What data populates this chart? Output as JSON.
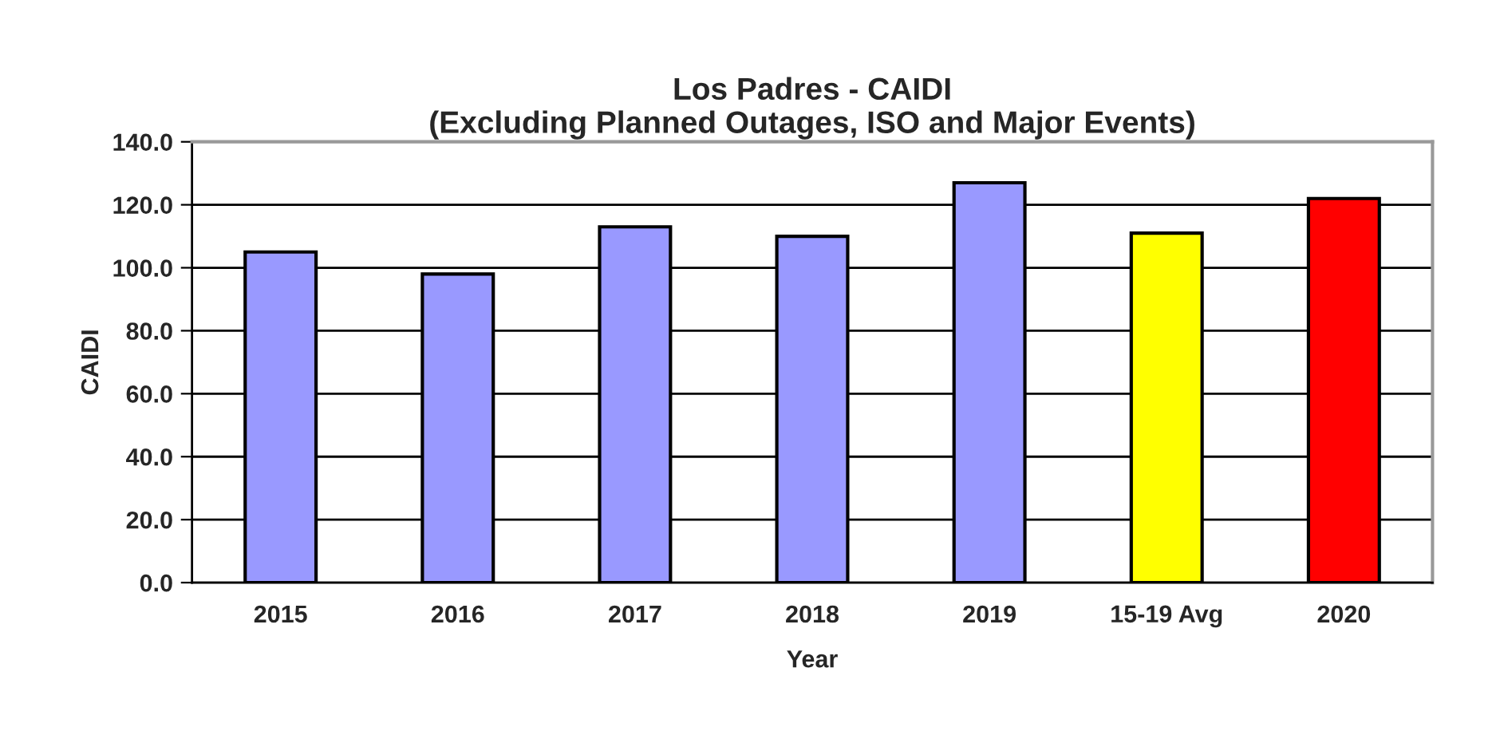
{
  "chart_data": {
    "type": "bar",
    "title": "Los Padres - CAIDI\n(Excluding Planned Outages, ISO and Major Events)",
    "xlabel": "Year",
    "ylabel": "CAIDI",
    "categories": [
      "2015",
      "2016",
      "2017",
      "2018",
      "2019",
      "15-19 Avg",
      "2020"
    ],
    "values": [
      105,
      98,
      113,
      110,
      127,
      111,
      122
    ],
    "colors": [
      "#9999ff",
      "#9999ff",
      "#9999ff",
      "#9999ff",
      "#9999ff",
      "#ffff00",
      "#ff0000"
    ],
    "ylim": [
      0,
      140
    ],
    "yticks": [
      {
        "value": 0,
        "label": "0.0"
      },
      {
        "value": 20,
        "label": "20.0"
      },
      {
        "value": 40,
        "label": "40.0"
      },
      {
        "value": 60,
        "label": "60.0"
      },
      {
        "value": 80,
        "label": "80.0"
      },
      {
        "value": 100,
        "label": "100.0"
      },
      {
        "value": 120,
        "label": "120.0"
      },
      {
        "value": 140,
        "label": "140.0"
      }
    ],
    "grid": "y",
    "legend": false
  }
}
